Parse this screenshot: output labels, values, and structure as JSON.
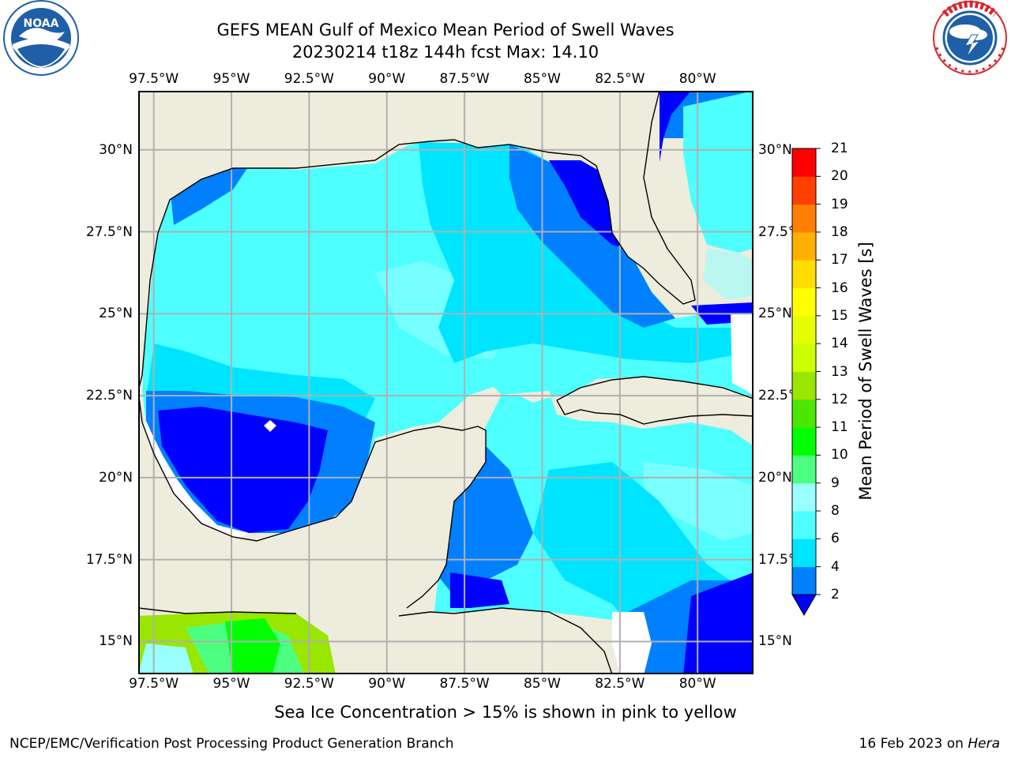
{
  "title": {
    "line1": "GEFS MEAN Gulf of Mexico Mean Period of Swell Waves",
    "line2": "20230214 t18z 144h fcst   Max: 14.10"
  },
  "logos": {
    "left": {
      "name": "noaa-logo",
      "text": "NOAA",
      "ring_text": "NATIONAL OCEANIC AND ATMOSPHERIC ADMINISTRATION · U.S. DEPARTMENT OF COMMERCE",
      "color": "#1f5fa8"
    },
    "right": {
      "name": "nws-logo",
      "ring_text": "NATIONAL WEATHER SERVICE",
      "color": "#d9262e"
    }
  },
  "map": {
    "extent": {
      "lon": [
        -98.0,
        -78.2
      ],
      "lat": [
        14.0,
        31.8
      ]
    },
    "lon_ticks": [
      {
        "value": -97.5,
        "label": "97.5°W"
      },
      {
        "value": -95,
        "label": "95°W"
      },
      {
        "value": -92.5,
        "label": "92.5°W"
      },
      {
        "value": -90,
        "label": "90°W"
      },
      {
        "value": -87.5,
        "label": "87.5°W"
      },
      {
        "value": -85,
        "label": "85°W"
      },
      {
        "value": -82.5,
        "label": "82.5°W"
      },
      {
        "value": -80,
        "label": "80°W"
      }
    ],
    "lat_ticks_left": [
      {
        "value": 30,
        "label": "30°N"
      },
      {
        "value": 27.5,
        "label": "27.5°N"
      },
      {
        "value": 25,
        "label": "25°N"
      },
      {
        "value": 22.5,
        "label": "22.5°N"
      },
      {
        "value": 20,
        "label": "20°N"
      },
      {
        "value": 17.5,
        "label": "17.5°N"
      },
      {
        "value": 15,
        "label": "15°N"
      }
    ],
    "lat_ticks_right": [
      {
        "value": 30,
        "label": "30°N"
      },
      {
        "value": 27.5,
        "label": "27.5°"
      },
      {
        "value": 25,
        "label": "25°N"
      },
      {
        "value": 22.5,
        "label": "22.5°"
      },
      {
        "value": 20,
        "label": "20°N"
      },
      {
        "value": 17.5,
        "label": "17.5°"
      },
      {
        "value": 15,
        "label": "15°N"
      }
    ],
    "land_color": "#eeecdc",
    "ocean_dominant_class": "6-8"
  },
  "colorbar": {
    "label": "Mean Period of Swell Waves [s]",
    "levels": [
      "2",
      "4",
      "6",
      "8",
      "9",
      "10",
      "11",
      "12",
      "13",
      "14",
      "15",
      "16",
      "17",
      "18",
      "19",
      "20",
      "21"
    ],
    "colors": [
      "#0000ff",
      "#0080ff",
      "#00e5ff",
      "#4dffff",
      "#99ffff",
      "#4dff80",
      "#00ff00",
      "#4de600",
      "#99e600",
      "#ccff00",
      "#e6ff00",
      "#ffff00",
      "#ffdd00",
      "#ffb000",
      "#ff8000",
      "#ff4000",
      "#ff0000"
    ],
    "under_color": "#0000ff"
  },
  "note": "Sea Ice Concentration > 15% is shown in pink to yellow",
  "footer": {
    "left": "NCEP/EMC/Verification Post Processing Product Generation Branch",
    "right_prefix": "16 Feb 2023 on ",
    "right_host": "Hera"
  }
}
